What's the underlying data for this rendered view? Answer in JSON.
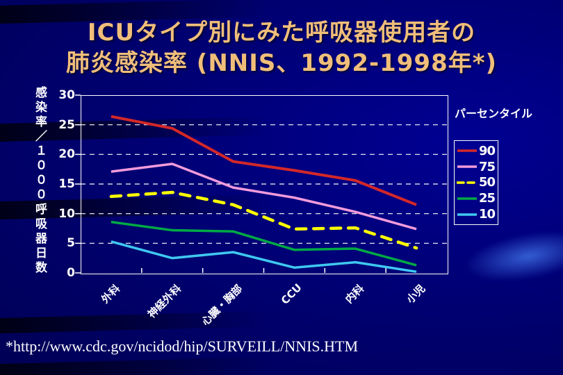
{
  "slide": {
    "title_line1": "ICUタイプ別にみた呼吸器使用者の",
    "title_line2": "肺炎感染率 (NNIS、1992-1998年*)",
    "footnote": "*http://www.cdc.gov/ncidod/hip/SURVEILL/NNIS.HTM"
  },
  "colors": {
    "background": "#000074",
    "title": "#F0BE7A",
    "axis": "#FFFFFF",
    "gridline": "#FFFFFF",
    "text": "#FFFFFF"
  },
  "chart_data": {
    "type": "line",
    "title": "ICUタイプ別にみた呼吸器使用者の肺炎感染率 (NNIS、1992-1998年*)",
    "categories": [
      "外科",
      "神経外科",
      "心臓・胸部",
      "CCU",
      "内科",
      "小児"
    ],
    "xlabel": "",
    "ylabel": "感染率／１０００呼吸器日数",
    "ylim": [
      0,
      30
    ],
    "yticks": [
      0,
      5,
      10,
      15,
      20,
      25,
      30
    ],
    "grid": "horizontal-dashed",
    "legend_title": "パーセンタイル",
    "legend_position": "right",
    "series": [
      {
        "name": "90",
        "color": "#D42828",
        "style": "solid",
        "values": [
          26.4,
          24.4,
          18.8,
          17.3,
          15.6,
          11.5
        ]
      },
      {
        "name": "75",
        "color": "#F29BDB",
        "style": "solid",
        "values": [
          17.1,
          18.4,
          14.4,
          12.7,
          10.3,
          7.4
        ]
      },
      {
        "name": "50",
        "color": "#FFFF00",
        "style": "dashed",
        "values": [
          12.9,
          13.6,
          11.5,
          7.4,
          7.6,
          4.2
        ]
      },
      {
        "name": "25",
        "color": "#00AA44",
        "style": "solid",
        "values": [
          8.6,
          7.2,
          7.0,
          3.9,
          4.1,
          1.3
        ]
      },
      {
        "name": "10",
        "color": "#3FC8F0",
        "style": "solid",
        "values": [
          5.3,
          2.5,
          3.5,
          0.9,
          1.8,
          0.2
        ]
      }
    ]
  }
}
